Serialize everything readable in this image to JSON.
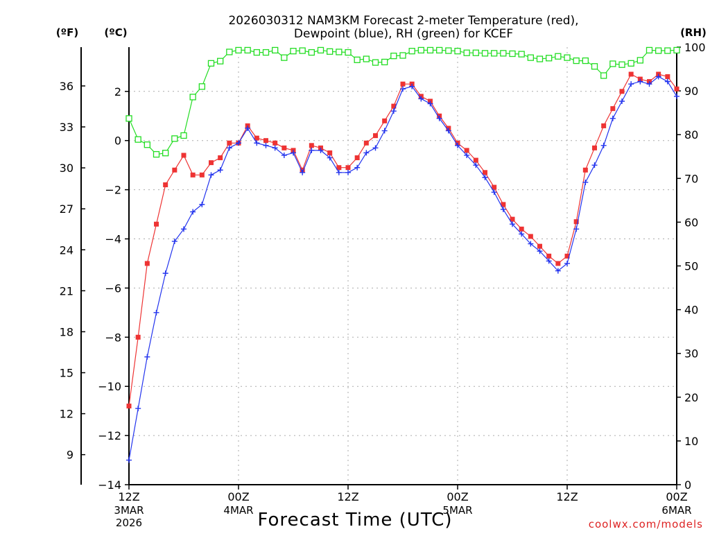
{
  "chart_data": {
    "type": "line",
    "title": {
      "line1": "2026030312 NAM3KM Forecast 2-meter Temperature (red),",
      "line2": "Dewpoint (blue), RH (green) for KCEF"
    },
    "xlabel": "Forecast Time (UTC)",
    "credit": "coolwx.com/models",
    "x_unit": "forecast hour",
    "xlim": [
      0,
      60
    ],
    "x_ticks": [
      {
        "hour": 0,
        "label": "12Z",
        "sub": "3MAR",
        "sub2": "2026"
      },
      {
        "hour": 12,
        "label": "00Z",
        "sub": "4MAR",
        "sub2": ""
      },
      {
        "hour": 24,
        "label": "12Z",
        "sub": "",
        "sub2": ""
      },
      {
        "hour": 36,
        "label": "00Z",
        "sub": "5MAR",
        "sub2": ""
      },
      {
        "hour": 48,
        "label": "12Z",
        "sub": "",
        "sub2": ""
      },
      {
        "hour": 60,
        "label": "00Z",
        "sub": "6MAR",
        "sub2": ""
      }
    ],
    "left_axis_c": {
      "label": "(ºC)",
      "ylim": [
        -14,
        3.8
      ],
      "ticks": [
        -14,
        -12,
        -10,
        -8,
        -6,
        -4,
        -2,
        0,
        2
      ],
      "tick_labels": [
        "−14",
        "−12",
        "−10",
        "−8",
        "−6",
        "−4",
        "−2",
        "0",
        "2"
      ]
    },
    "left_axis_f": {
      "label": "(ºF)",
      "ticks": [
        9,
        12,
        15,
        18,
        21,
        24,
        27,
        30,
        33,
        36
      ],
      "tick_labels": [
        "9",
        "12",
        "15",
        "18",
        "21",
        "24",
        "27",
        "30",
        "33",
        "36"
      ]
    },
    "right_axis_rh": {
      "label": "(RH)",
      "ylim": [
        0,
        100
      ],
      "ticks": [
        0,
        10,
        20,
        30,
        40,
        50,
        60,
        70,
        80,
        90,
        100
      ],
      "tick_labels": [
        "0",
        "10",
        "20",
        "30",
        "40",
        "50",
        "60",
        "70",
        "80",
        "90",
        "100"
      ]
    },
    "grid": true,
    "series": [
      {
        "name": "Temperature",
        "axis": "celsius",
        "color": "#ee3333",
        "marker": "square-filled",
        "x": [
          0,
          1,
          2,
          3,
          4,
          5,
          6,
          7,
          8,
          9,
          10,
          11,
          12,
          13,
          14,
          15,
          16,
          17,
          18,
          19,
          20,
          21,
          22,
          23,
          24,
          25,
          26,
          27,
          28,
          29,
          30,
          31,
          32,
          33,
          34,
          35,
          36,
          37,
          38,
          39,
          40,
          41,
          42,
          43,
          44,
          45,
          46,
          47,
          48,
          49,
          50,
          51,
          52,
          53,
          54,
          55,
          56,
          57,
          58,
          59,
          60
        ],
        "values": [
          -10.8,
          -8.0,
          -5.0,
          -3.4,
          -1.8,
          -1.2,
          -0.6,
          -1.4,
          -1.4,
          -0.9,
          -0.7,
          -0.1,
          -0.1,
          0.6,
          0.1,
          0.0,
          -0.1,
          -0.3,
          -0.4,
          -1.2,
          -0.2,
          -0.3,
          -0.5,
          -1.1,
          -1.1,
          -0.7,
          -0.1,
          0.2,
          0.8,
          1.4,
          2.3,
          2.3,
          1.8,
          1.6,
          1.0,
          0.5,
          -0.1,
          -0.4,
          -0.8,
          -1.3,
          -1.9,
          -2.6,
          -3.2,
          -3.6,
          -3.9,
          -4.3,
          -4.7,
          -5.0,
          -4.7,
          -3.3,
          -1.2,
          -0.3,
          0.6,
          1.3,
          2.0,
          2.7,
          2.5,
          2.4,
          2.7,
          2.6,
          2.1
        ]
      },
      {
        "name": "Dewpoint",
        "axis": "celsius",
        "color": "#2233ee",
        "marker": "plus",
        "x": [
          0,
          1,
          2,
          3,
          4,
          5,
          6,
          7,
          8,
          9,
          10,
          11,
          12,
          13,
          14,
          15,
          16,
          17,
          18,
          19,
          20,
          21,
          22,
          23,
          24,
          25,
          26,
          27,
          28,
          29,
          30,
          31,
          32,
          33,
          34,
          35,
          36,
          37,
          38,
          39,
          40,
          41,
          42,
          43,
          44,
          45,
          46,
          47,
          48,
          49,
          50,
          51,
          52,
          53,
          54,
          55,
          56,
          57,
          58,
          59,
          60
        ],
        "values": [
          -13.0,
          -10.9,
          -8.8,
          -7.0,
          -5.4,
          -4.1,
          -3.6,
          -2.9,
          -2.6,
          -1.4,
          -1.2,
          -0.3,
          -0.1,
          0.5,
          -0.1,
          -0.2,
          -0.3,
          -0.6,
          -0.5,
          -1.3,
          -0.4,
          -0.4,
          -0.7,
          -1.3,
          -1.3,
          -1.1,
          -0.5,
          -0.3,
          0.4,
          1.2,
          2.1,
          2.2,
          1.7,
          1.5,
          0.9,
          0.4,
          -0.2,
          -0.6,
          -1.0,
          -1.5,
          -2.1,
          -2.8,
          -3.4,
          -3.8,
          -4.2,
          -4.5,
          -4.9,
          -5.3,
          -5.0,
          -3.6,
          -1.7,
          -1.0,
          -0.2,
          0.9,
          1.6,
          2.3,
          2.4,
          2.3,
          2.6,
          2.4,
          1.8
        ]
      },
      {
        "name": "RH",
        "axis": "rh",
        "color": "#22dd22",
        "marker": "square-open",
        "x": [
          0,
          1,
          2,
          3,
          4,
          5,
          6,
          7,
          8,
          9,
          10,
          11,
          12,
          13,
          14,
          15,
          16,
          17,
          18,
          19,
          20,
          21,
          22,
          23,
          24,
          25,
          26,
          27,
          28,
          29,
          30,
          31,
          32,
          33,
          34,
          35,
          36,
          37,
          38,
          39,
          40,
          41,
          42,
          43,
          44,
          45,
          46,
          47,
          48,
          49,
          50,
          51,
          52,
          53,
          54,
          55,
          56,
          57,
          58,
          59,
          60
        ],
        "values": [
          83.7,
          78.9,
          77.7,
          75.5,
          75.8,
          79.1,
          79.8,
          88.6,
          91.0,
          96.3,
          96.8,
          98.9,
          99.3,
          99.3,
          98.8,
          98.8,
          99.3,
          97.6,
          99.1,
          99.2,
          98.8,
          99.3,
          99.0,
          98.9,
          98.8,
          97.1,
          97.3,
          96.5,
          96.6,
          98.0,
          98.1,
          99.1,
          99.3,
          99.3,
          99.3,
          99.2,
          99.1,
          98.7,
          98.7,
          98.6,
          98.6,
          98.6,
          98.5,
          98.4,
          97.6,
          97.3,
          97.5,
          97.9,
          97.6,
          96.9,
          96.9,
          95.6,
          93.5,
          96.2,
          96.0,
          96.3,
          97.0,
          99.3,
          99.2,
          99.2,
          99.3
        ]
      }
    ]
  }
}
